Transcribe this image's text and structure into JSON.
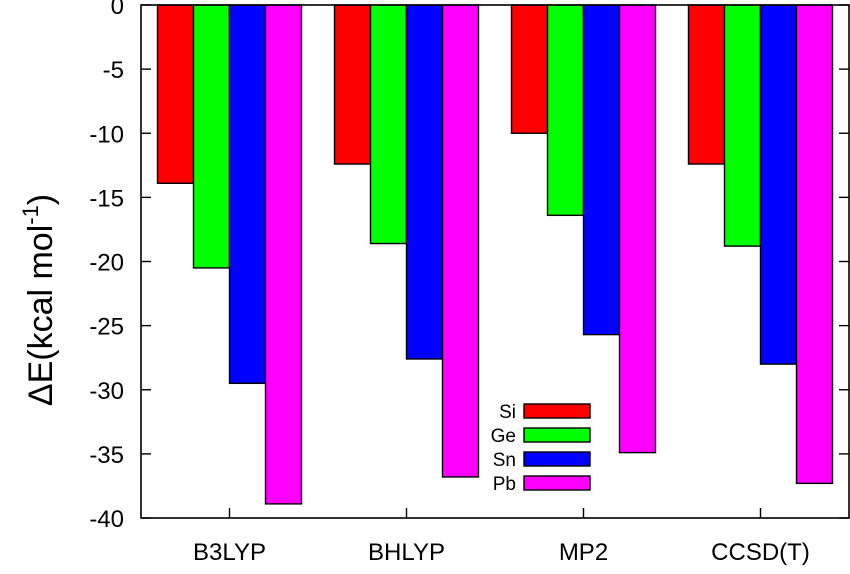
{
  "chart_data": {
    "type": "bar",
    "categories": [
      "B3LYP",
      "BHLYP",
      "MP2",
      "CCSD(T)"
    ],
    "series": [
      {
        "name": "Si",
        "color": "#ff0000",
        "values": [
          -13.9,
          -12.4,
          -10.0,
          -12.4
        ]
      },
      {
        "name": "Ge",
        "color": "#00ff00",
        "values": [
          -20.5,
          -18.6,
          -16.4,
          -18.8
        ]
      },
      {
        "name": "Sn",
        "color": "#0000ff",
        "values": [
          -29.5,
          -27.6,
          -25.7,
          -28.0
        ]
      },
      {
        "name": "Pb",
        "color": "#ff00ff",
        "values": [
          -38.9,
          -36.8,
          -34.9,
          -37.3
        ]
      }
    ],
    "title": "",
    "xlabel": "",
    "ylabel_main": "ΔE(kcal mol",
    "ylabel_sup": "-1",
    "ylabel_close": ")",
    "ylim": [
      -40,
      0
    ],
    "yticks": [
      0,
      -5,
      -10,
      -15,
      -20,
      -25,
      -30,
      -35,
      -40
    ],
    "ytick_labels": [
      "0",
      "-5",
      "-10",
      "-15",
      "-20",
      "-25",
      "-30",
      "-35",
      "-40"
    ],
    "grid": false,
    "legend_position": "lower-center"
  }
}
